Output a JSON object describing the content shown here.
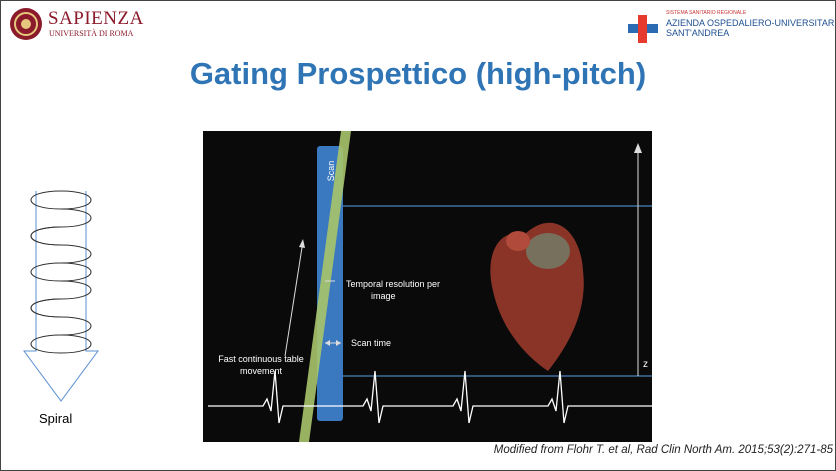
{
  "header": {
    "university": "SAPIENZA",
    "university_sub": "UNIVERSITÀ DI ROMA",
    "hospital_top": "SISTEMA SANITARIO REGIONALE",
    "hospital_line1": "AZIENDA OSPEDALIERO-UNIVERSITARIA",
    "hospital_line2": "SANT'ANDREA"
  },
  "title": "Gating Prospettico (high-pitch)",
  "figure": {
    "scan": "Scan",
    "temporal": [
      "Temporal resolution per",
      "image"
    ],
    "scan_time": "Scan time",
    "table": [
      "Fast continuous table",
      "movement"
    ],
    "z": "z"
  },
  "spiral_label": "Spiral",
  "citation": "Modified from Flohr T. et al, Rad Clin North Am. 2015;53(2):271-85"
}
